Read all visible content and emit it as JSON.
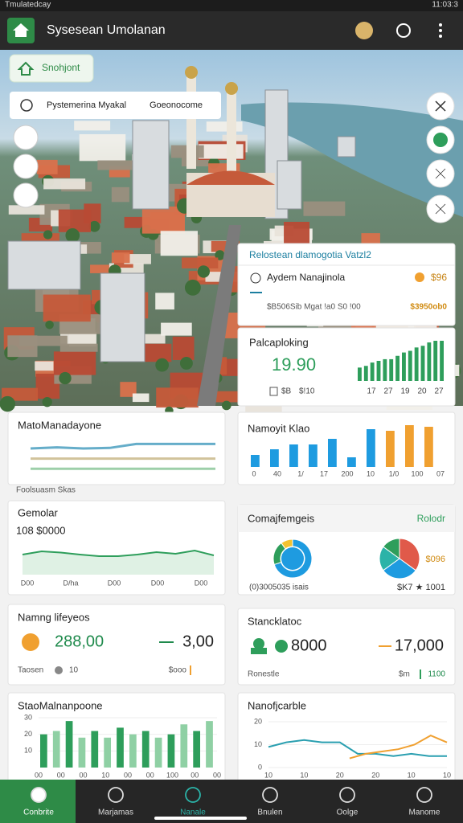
{
  "status_bar": {
    "left": "Tmulatedcay",
    "time": "11:03:3"
  },
  "app_bar": {
    "title": "Sysesean Umolanan"
  },
  "map": {
    "chip": "Snohjont",
    "search_left": "Pystemerina Myakal",
    "search_right": "Goeonocome"
  },
  "info_card": {
    "title": "Relostean dlamogotia Vatzl2",
    "row1_label": "Aydem Nanajinola",
    "row1_value": "$96",
    "row2_label": "$B506Sib Mgat !a0 S0 !00",
    "row2_value": "$3950ob0"
  },
  "spark_card": {
    "title": "Palcaploking",
    "value": "19.90",
    "color": "#2e9e5b",
    "values": [
      8,
      9,
      11,
      12,
      13,
      13,
      15,
      17,
      18,
      20,
      21,
      23,
      24,
      24
    ],
    "foot": [
      "$B",
      "$!10"
    ],
    "x_labels": [
      "17",
      "27",
      "19",
      "20",
      "27"
    ]
  },
  "widgets": [
    {
      "title": "MatoManadayone",
      "caption": "Foolsuasm Skas",
      "series": [
        {
          "color": "#4a9fc0",
          "values": [
            50,
            52,
            50,
            51,
            58,
            58,
            58,
            58
          ]
        },
        {
          "color": "#c9b98a",
          "values": [
            32,
            32,
            32,
            32,
            32,
            32,
            32,
            32
          ]
        },
        {
          "color": "#8cc79a",
          "values": [
            14,
            14,
            14,
            14,
            14,
            14,
            14,
            14
          ]
        }
      ]
    },
    {
      "title": "Namoyit Klao",
      "values": [
        15,
        22,
        28,
        28,
        35,
        12,
        47,
        45,
        52,
        50
      ],
      "colors": [
        "#1e9be0",
        "#1e9be0",
        "#1e9be0",
        "#1e9be0",
        "#1e9be0",
        "#1e9be0",
        "#1e9be0",
        "#f0a030",
        "#f0a030",
        "#f0a030"
      ],
      "x_labels": [
        "0",
        "40",
        "1/",
        "17",
        "200",
        "10",
        "1/0",
        "100",
        "07"
      ]
    },
    {
      "title": "Gemolar",
      "value": "108 $0000",
      "color": "#2e9e5b",
      "values": [
        50,
        58,
        55,
        50,
        46,
        46,
        50,
        56,
        52,
        60,
        48
      ],
      "x_labels": [
        "D00",
        "D/ha",
        "D00",
        "D00",
        "D00"
      ]
    },
    {
      "title": "Comajfemgeis",
      "badge": "Rolodr",
      "donut": {
        "values": [
          70,
          20,
          10
        ],
        "colors": [
          "#1e9be0",
          "#2e9e5b",
          "#f2c230"
        ]
      },
      "pie": {
        "values": [
          35,
          30,
          20,
          15
        ],
        "colors": [
          "#e05a4a",
          "#1e9be0",
          "#2bb3a8",
          "#2e9e5b"
        ]
      },
      "pie_value": "$096",
      "pie_foot": "$K7 ★ 1001",
      "legend_text": "(0)3005035 isais"
    },
    {
      "title": "Namng lifeyeos",
      "left_value": "288,00",
      "right_value": "3,00",
      "foot_left": "Taosen",
      "foot_mid": "10",
      "foot_right": "$ooo"
    },
    {
      "title": "Stancklatoc",
      "left_value": "8000",
      "right_value": "17,000",
      "foot_left": "Ronestle",
      "foot_mid": "$m",
      "foot_right": "1100"
    },
    {
      "title": "StaoMalnanpoone",
      "ylim": [
        0,
        30
      ],
      "yticks": [
        10,
        20,
        30
      ],
      "color": "#2e9e5b",
      "alt_color": "#8fd0a4",
      "values": [
        20,
        22,
        28,
        18,
        22,
        18,
        24,
        20,
        22,
        18,
        20,
        26,
        22,
        28
      ],
      "x_labels": [
        "00",
        "00",
        "00",
        "10",
        "00",
        "00",
        "100",
        "00",
        "00"
      ]
    },
    {
      "title": "Nanofjcarble",
      "ylim": [
        0,
        20
      ],
      "yticks": [
        0,
        10,
        20
      ],
      "series": [
        {
          "color": "#2a9fb0",
          "values": [
            9,
            11,
            12,
            11,
            11,
            6,
            6,
            5,
            6,
            5,
            5
          ]
        },
        {
          "color": "#f0a030",
          "values": [
            null,
            null,
            null,
            null,
            null,
            4,
            6,
            7,
            8,
            10,
            14,
            11
          ]
        }
      ],
      "x_labels": [
        "10",
        "10",
        "20",
        "20",
        "10",
        "10"
      ]
    }
  ],
  "nav": {
    "items": [
      "Conbrite",
      "Marjamas",
      "Nanale",
      "Bnulen",
      "Oolge",
      "Manome"
    ]
  }
}
